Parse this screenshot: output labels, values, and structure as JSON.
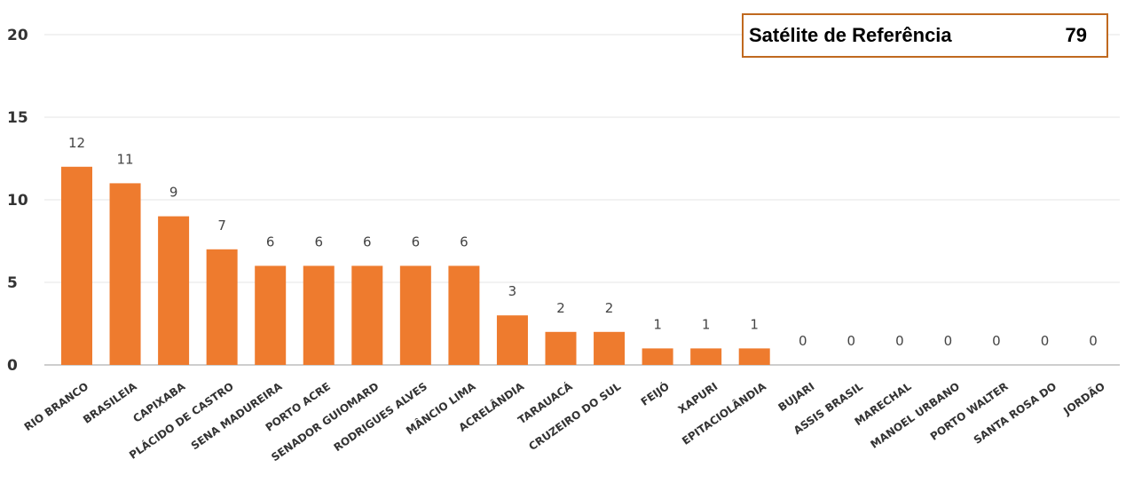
{
  "chart_data": {
    "type": "bar",
    "categories": [
      "RIO BRANCO",
      "BRASILEIA",
      "CAPIXABA",
      "PLÁCIDO DE CASTRO",
      "SENA MADUREIRA",
      "PORTO ACRE",
      "SENADOR GUIOMARD",
      "RODRIGUES ALVES",
      "MÂNCIO LIMA",
      "ACRELÂNDIA",
      "TARAUACÁ",
      "CRUZEIRO DO SUL",
      "FEIJÓ",
      "XAPURI",
      "EPITACIOLÂNDIA",
      "BUJARI",
      "ASSIS BRASIL",
      "MARECHAL",
      "MANOEL URBANO",
      "PORTO WALTER",
      "SANTA ROSA DO",
      "JORDÃO"
    ],
    "values": [
      12,
      11,
      9,
      7,
      6,
      6,
      6,
      6,
      6,
      3,
      2,
      2,
      1,
      1,
      1,
      0,
      0,
      0,
      0,
      0,
      0,
      0
    ],
    "ylim": [
      0,
      20
    ],
    "yticks": [
      0,
      5,
      10,
      15,
      20
    ],
    "grid": true,
    "bar_color": "#ee7b2e",
    "data_labels": true
  },
  "info_box": {
    "label": "Satélite de Referência",
    "value": "79",
    "border_color": "#c0691f"
  }
}
